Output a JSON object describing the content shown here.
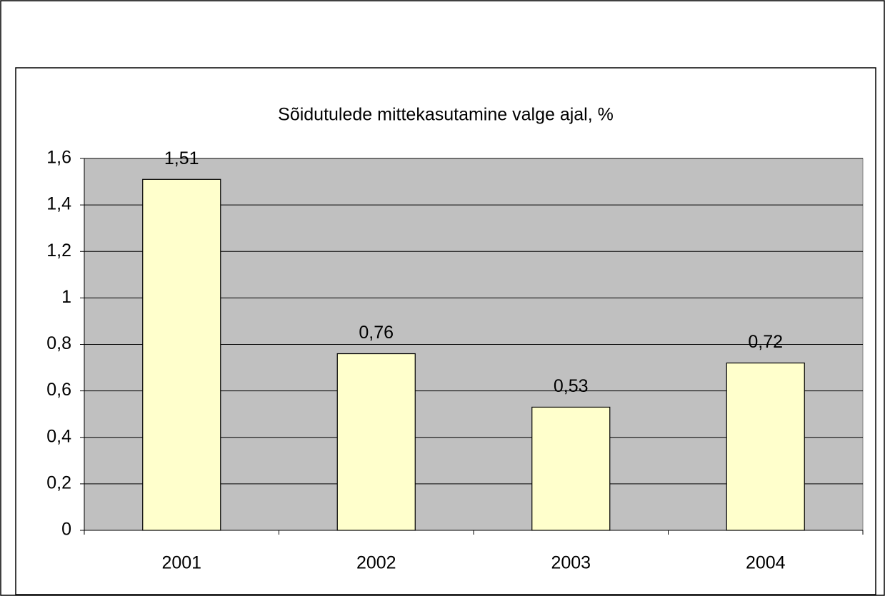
{
  "chart_data": {
    "type": "bar",
    "title": "Sõidutulede mittekasutamine valge ajal, %",
    "categories": [
      "2001",
      "2002",
      "2003",
      "2004"
    ],
    "values": [
      1.51,
      0.76,
      0.53,
      0.72
    ],
    "value_labels": [
      "1,51",
      "0,76",
      "0,53",
      "0,72"
    ],
    "color": "#ffffcc",
    "ylim": [
      0,
      1.6
    ],
    "yticks": [
      0,
      {
        "value": 0.2,
        "label": "0,2"
      },
      {
        "value": 0.4,
        "label": "0,4"
      },
      {
        "value": 0.6,
        "label": "0,6"
      },
      {
        "value": 0.8,
        "label": "0,8"
      },
      1,
      {
        "value": 1.2,
        "label": "1,2"
      },
      {
        "value": 1.4,
        "label": "1,4"
      },
      {
        "value": 1.6,
        "label": "1,6"
      }
    ],
    "grid": true
  }
}
